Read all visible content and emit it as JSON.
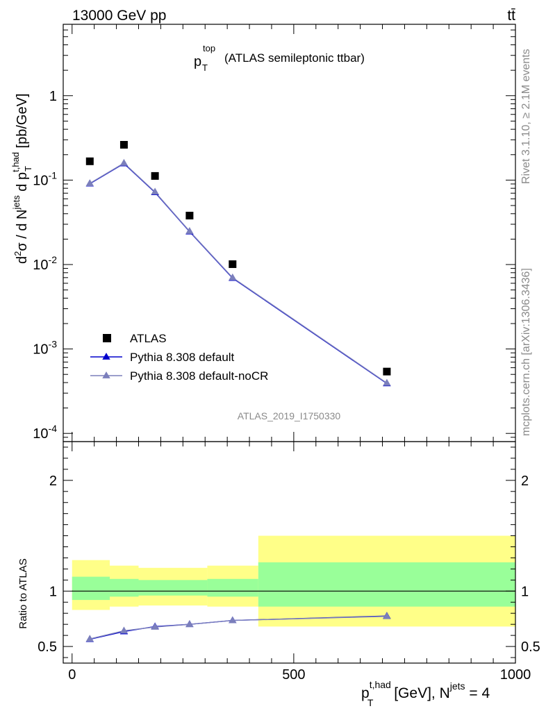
{
  "header": {
    "energy_label": "13000 GeV pp",
    "process_label": "tt̄",
    "side_rivet": "Rivet 3.1.10, ≥ 2.1M events",
    "side_mcplots": "mcplots.cern.ch [arXiv:1306.3436]"
  },
  "chart_data": [
    {
      "type": "scatter",
      "panel": "main",
      "title": "p_T^top (ATLAS semileptonic ttbar)",
      "title_main": "p",
      "title_sub": "T",
      "title_sup": "top",
      "title_rest": "(ATLAS semileptonic ttbar)",
      "ylabel": "d²σ / d N^jets d p_T^t,had [pb/GeV]",
      "yscale": "log",
      "ylim": [
        8e-05,
        7
      ],
      "xlim": [
        -20,
        1000
      ],
      "y_ticks": [
        "10^-4",
        "10^-3",
        "10^-2",
        "10^-1",
        "1"
      ],
      "watermark": "ATLAS_2019_I1750330",
      "legend_position": "bottom-left",
      "legend": [
        "ATLAS",
        "Pythia 8.308 default",
        "Pythia 8.308 default-noCR"
      ],
      "series": [
        {
          "name": "ATLAS",
          "style": "square",
          "color": "#000000",
          "x": [
            40,
            117,
            187,
            265,
            362,
            710
          ],
          "y": [
            0.167,
            0.262,
            0.112,
            0.038,
            0.0101,
            0.00054
          ]
        },
        {
          "name": "Pythia 8.308 default",
          "style": "line-triangle",
          "color": "#0000cc",
          "x": [
            40,
            117,
            187,
            265,
            362,
            710
          ],
          "y": [
            0.0905,
            0.157,
            0.0715,
            0.0245,
            0.0069,
            0.00039
          ]
        },
        {
          "name": "Pythia 8.308 default-noCR",
          "style": "line-triangle",
          "color": "#7b7fbc",
          "x": [
            40,
            117,
            187,
            265,
            362,
            710
          ],
          "y": [
            0.0915,
            0.159,
            0.0725,
            0.0248,
            0.007,
            0.000395
          ]
        }
      ]
    },
    {
      "type": "line",
      "panel": "ratio",
      "ylabel": "Ratio to ATLAS",
      "xlabel": "p_T^t,had [GeV], N^jets = 4",
      "ylim": [
        0.35,
        2.35
      ],
      "xlim": [
        -20,
        1000
      ],
      "y_ticks": [
        "0.5",
        "1",
        "2"
      ],
      "x_ticks": [
        "0",
        "500",
        "1000"
      ],
      "bands": [
        {
          "x0": 0,
          "x1": 85,
          "inner": [
            0.92,
            1.13
          ],
          "outer": [
            0.83,
            1.28
          ]
        },
        {
          "x0": 85,
          "x1": 150,
          "inner": [
            0.95,
            1.11
          ],
          "outer": [
            0.86,
            1.23
          ]
        },
        {
          "x0": 150,
          "x1": 305,
          "inner": [
            0.96,
            1.1
          ],
          "outer": [
            0.87,
            1.21
          ]
        },
        {
          "x0": 305,
          "x1": 420,
          "inner": [
            0.95,
            1.11
          ],
          "outer": [
            0.86,
            1.23
          ]
        },
        {
          "x0": 420,
          "x1": 1000,
          "inner": [
            0.86,
            1.26
          ],
          "outer": [
            0.68,
            1.5
          ]
        }
      ],
      "band_colors": {
        "inner": "#99ff99",
        "outer": "#ffff88"
      },
      "series": [
        {
          "name": "Pythia 8.308 default",
          "color": "#0000cc",
          "x": [
            40,
            117,
            187,
            265,
            362,
            710
          ],
          "y": [
            0.565,
            0.635,
            0.68,
            0.7,
            0.735,
            0.775
          ]
        },
        {
          "name": "Pythia 8.308 default-noCR",
          "color": "#7b7fbc",
          "x": [
            40,
            117,
            187,
            265,
            362,
            710
          ],
          "y": [
            0.568,
            0.642,
            0.676,
            0.7,
            0.735,
            0.772
          ]
        }
      ]
    }
  ]
}
